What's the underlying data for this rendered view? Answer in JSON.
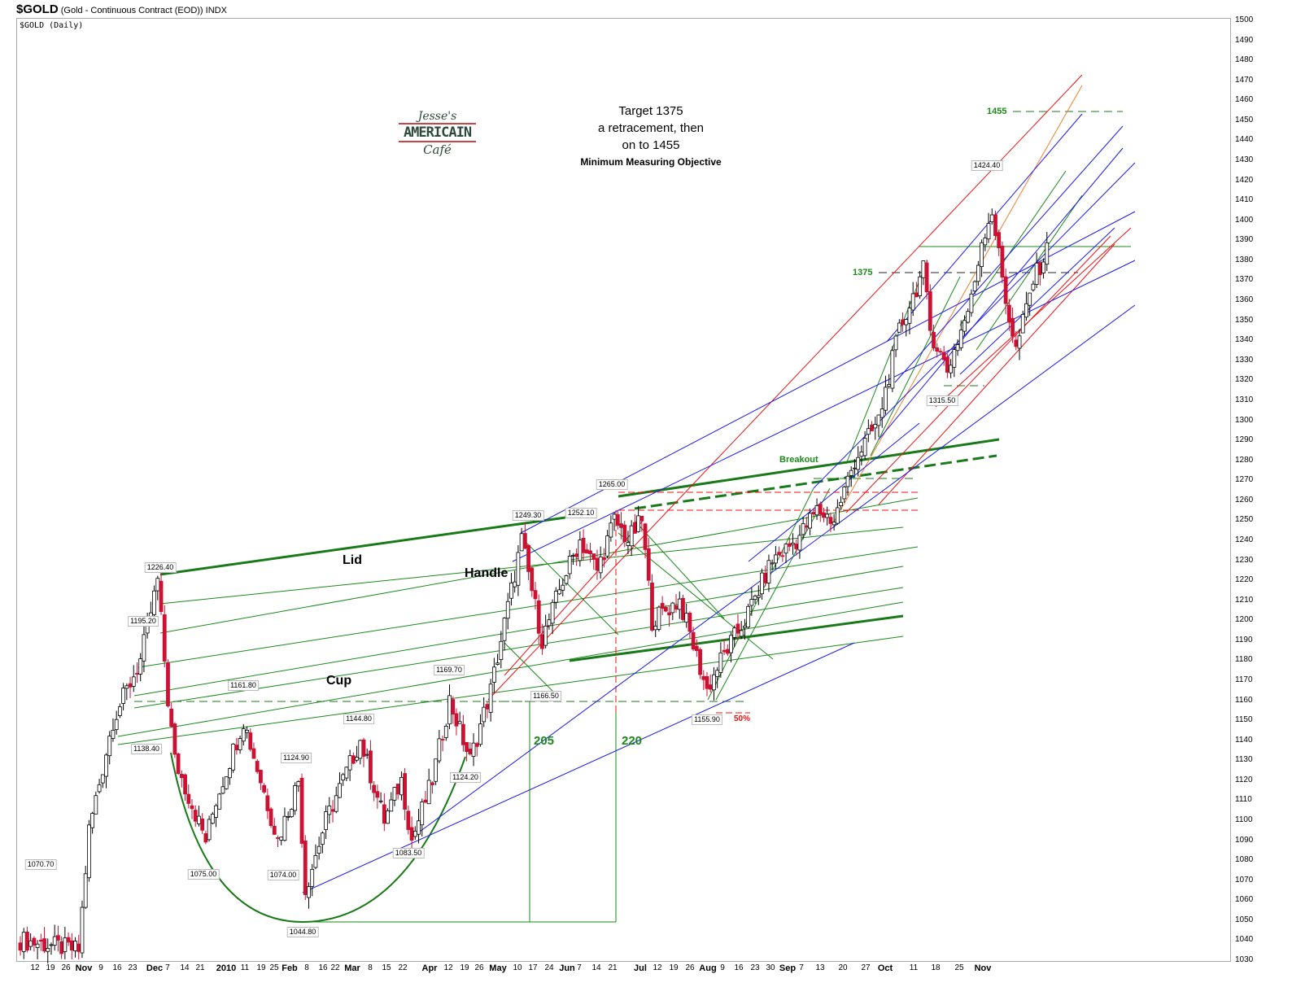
{
  "header": {
    "symbol": "$GOLD",
    "description": "(Gold - Continuous Contract (EOD))",
    "exchange": "INDX",
    "subtitle": "$GOLD (Daily)"
  },
  "logo": {
    "line1": "Jesse's",
    "line2": "AMERICAIN",
    "line3": "Café"
  },
  "target_note": {
    "line1": "Target 1375",
    "line2": "a retracement,  then",
    "line3": "on  to 1455",
    "line4": "Minimum Measuring Objective"
  },
  "pattern_labels": {
    "lid": "Lid",
    "handle": "Handle",
    "cup": "Cup",
    "breakout": "Breakout",
    "measure1": "205",
    "measure2": "220",
    "target1": "1375",
    "target2": "1455",
    "fib": "50%"
  },
  "colors": {
    "up": "#ffffff",
    "down": "#cc1133",
    "green": "#1a7a1a",
    "blue": "#1a1aee",
    "red": "#ee1111"
  },
  "chart_data": {
    "type": "candlestick",
    "title": "$GOLD (Daily)",
    "ylim": [
      1030,
      1500
    ],
    "y_ticks": [
      1030,
      1040,
      1050,
      1060,
      1070,
      1080,
      1090,
      1100,
      1110,
      1120,
      1130,
      1140,
      1150,
      1160,
      1170,
      1180,
      1190,
      1200,
      1210,
      1220,
      1230,
      1240,
      1250,
      1260,
      1270,
      1280,
      1290,
      1300,
      1310,
      1320,
      1330,
      1340,
      1350,
      1360,
      1370,
      1380,
      1390,
      1400,
      1410,
      1420,
      1430,
      1440,
      1450,
      1460,
      1470,
      1480,
      1490,
      1500
    ],
    "x_ticks": [
      "12",
      "19",
      "26",
      "Nov",
      "9",
      "16",
      "23",
      "Dec",
      "7",
      "14",
      "21",
      "2010",
      "11",
      "19",
      "25",
      "Feb",
      "8",
      "16",
      "22",
      "Mar",
      "8",
      "15",
      "22",
      "Apr",
      "12",
      "19",
      "26",
      "May",
      "10",
      "17",
      "24",
      "Jun",
      "7",
      "14",
      "21",
      "Jul",
      "12",
      "19",
      "26",
      "Aug",
      "9",
      "16",
      "23",
      "30",
      "Sep",
      "7",
      "13",
      "20",
      "27",
      "Oct",
      "11",
      "18",
      "25",
      "Nov"
    ],
    "x_bold": [
      "Nov",
      "Dec",
      "2010",
      "Feb",
      "Mar",
      "Apr",
      "May",
      "Jun",
      "Jul",
      "Aug",
      "Sep",
      "Oct"
    ],
    "price_path": [
      [
        0,
        1040
      ],
      [
        17,
        1035
      ],
      [
        20,
        1095
      ],
      [
        27,
        1150
      ],
      [
        35,
        1180
      ],
      [
        40,
        1220
      ],
      [
        43,
        1160
      ],
      [
        45,
        1130
      ],
      [
        54,
        1090
      ],
      [
        57,
        1110
      ],
      [
        65,
        1150
      ],
      [
        70,
        1120
      ],
      [
        75,
        1090
      ],
      [
        81,
        1120
      ],
      [
        83,
        1065
      ],
      [
        89,
        1100
      ],
      [
        99,
        1140
      ],
      [
        106,
        1100
      ],
      [
        111,
        1120
      ],
      [
        114,
        1090
      ],
      [
        120,
        1120
      ],
      [
        125,
        1160
      ],
      [
        131,
        1130
      ],
      [
        137,
        1165
      ],
      [
        146,
        1240
      ],
      [
        152,
        1190
      ],
      [
        158,
        1220
      ],
      [
        163,
        1240
      ],
      [
        168,
        1225
      ],
      [
        173,
        1250
      ],
      [
        177,
        1240
      ],
      [
        181,
        1250
      ],
      [
        184,
        1200
      ],
      [
        192,
        1210
      ],
      [
        200,
        1165
      ],
      [
        204,
        1180
      ],
      [
        211,
        1200
      ],
      [
        219,
        1230
      ],
      [
        226,
        1240
      ],
      [
        232,
        1255
      ],
      [
        237,
        1250
      ],
      [
        243,
        1280
      ],
      [
        250,
        1300
      ],
      [
        256,
        1345
      ],
      [
        263,
        1375
      ],
      [
        265,
        1345
      ],
      [
        270,
        1325
      ],
      [
        277,
        1360
      ],
      [
        280,
        1390
      ],
      [
        283,
        1405
      ],
      [
        287,
        1360
      ],
      [
        290,
        1335
      ],
      [
        295,
        1370
      ],
      [
        299,
        1385
      ]
    ],
    "price_labels": [
      "1070.70",
      "1226.40",
      "1195.20",
      "1138.40",
      "1161.80",
      "1075.00",
      "1124.90",
      "1074.00",
      "1044.80",
      "1144.80",
      "1083.50",
      "1169.70",
      "1124.20",
      "1249.30",
      "1166.50",
      "1252.10",
      "1265.00",
      "1155.90",
      "1424.40",
      "1315.50"
    ]
  }
}
